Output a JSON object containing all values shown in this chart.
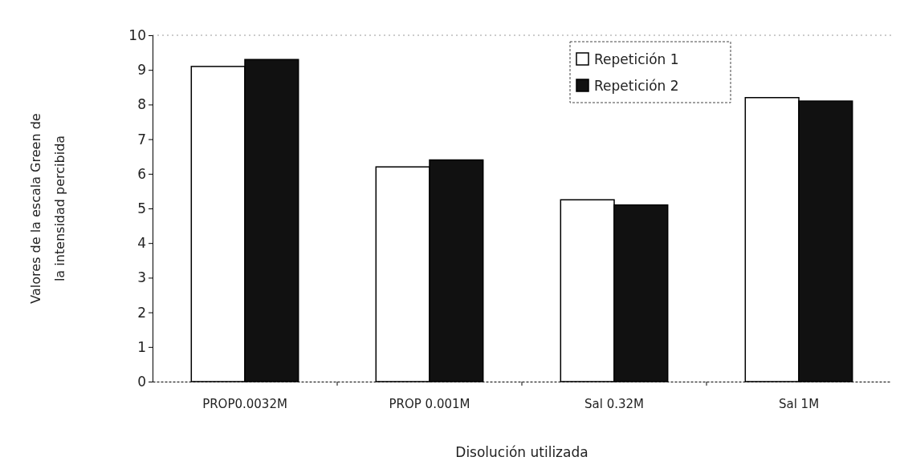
{
  "chart_data": {
    "type": "bar",
    "xlabel": "Disolución utilizada",
    "ylabel": "Valores de la escala Green de la intensidad percibida",
    "categories": [
      "PROP0.0032M",
      "PROP 0.001M",
      "Sal 0.32M",
      "Sal 1M"
    ],
    "series": [
      {
        "name": "Repetición 1",
        "color": "#ffffff",
        "values": [
          9.1,
          6.2,
          5.25,
          8.2
        ]
      },
      {
        "name": "Repetición 2",
        "color": "#111111",
        "values": [
          9.3,
          6.4,
          5.1,
          8.1
        ]
      }
    ],
    "ylim": [
      0,
      10
    ],
    "yticks": [
      0,
      1,
      2,
      3,
      4,
      5,
      6,
      7,
      8,
      9,
      10
    ],
    "legend": "top right"
  }
}
